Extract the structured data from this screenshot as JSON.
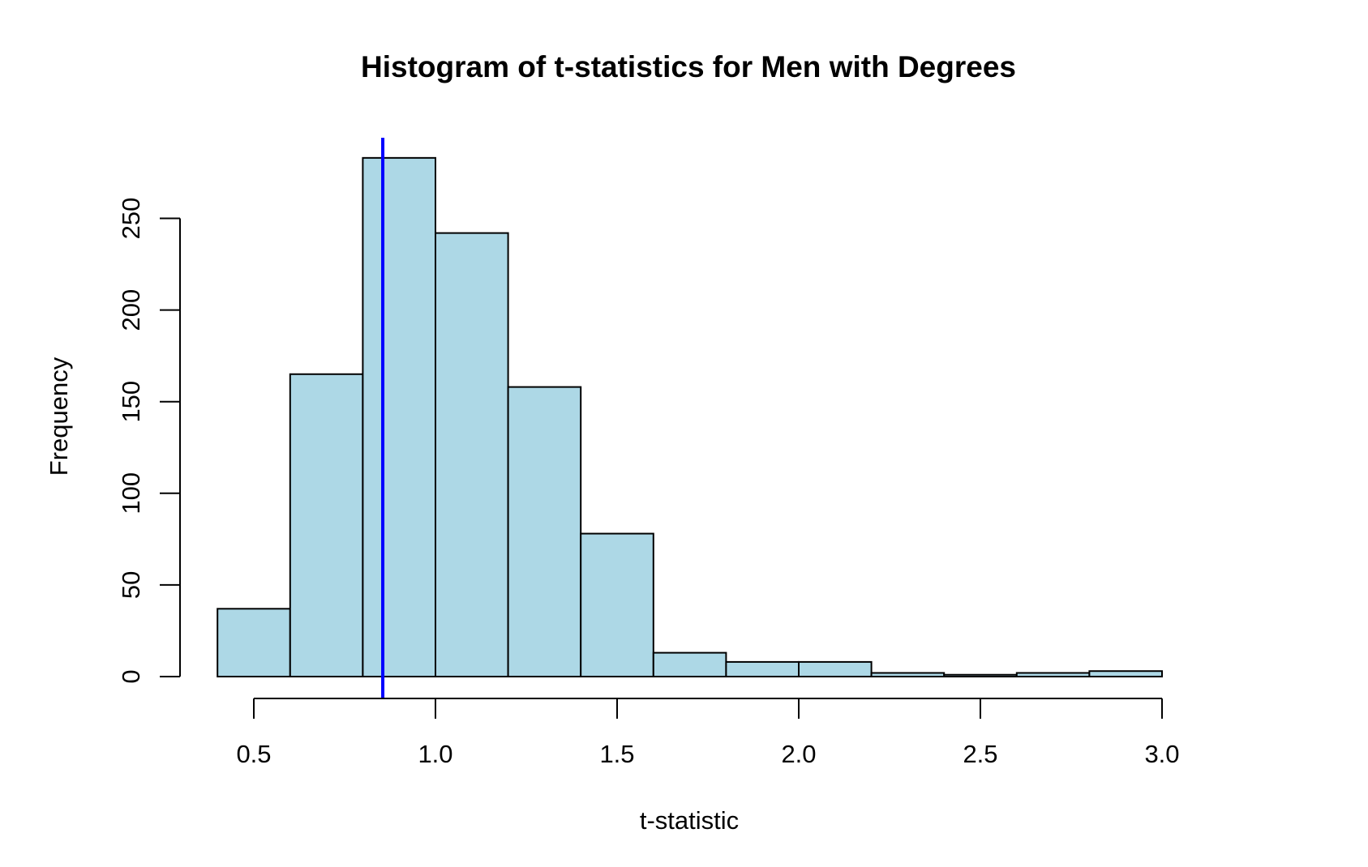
{
  "chart_data": {
    "type": "bar",
    "title": "Histogram of t-statistics for Men with Degrees",
    "xlabel": "t-statistic",
    "ylabel": "Frequency",
    "bins": [
      {
        "x0": 0.4,
        "x1": 0.6,
        "count": 37
      },
      {
        "x0": 0.6,
        "x1": 0.8,
        "count": 165
      },
      {
        "x0": 0.8,
        "x1": 1.0,
        "count": 283
      },
      {
        "x0": 1.0,
        "x1": 1.2,
        "count": 242
      },
      {
        "x0": 1.2,
        "x1": 1.4,
        "count": 158
      },
      {
        "x0": 1.4,
        "x1": 1.6,
        "count": 78
      },
      {
        "x0": 1.6,
        "x1": 1.8,
        "count": 13
      },
      {
        "x0": 1.8,
        "x1": 2.0,
        "count": 8
      },
      {
        "x0": 2.0,
        "x1": 2.2,
        "count": 8
      },
      {
        "x0": 2.2,
        "x1": 2.4,
        "count": 2
      },
      {
        "x0": 2.4,
        "x1": 2.6,
        "count": 1
      },
      {
        "x0": 2.6,
        "x1": 2.8,
        "count": 2
      },
      {
        "x0": 2.8,
        "x1": 3.0,
        "count": 3
      }
    ],
    "xticks": [
      0.5,
      1.0,
      1.5,
      2.0,
      2.5,
      3.0
    ],
    "xtick_labels": [
      "0.5",
      "1.0",
      "1.5",
      "2.0",
      "2.5",
      "3.0"
    ],
    "yticks": [
      0,
      50,
      100,
      150,
      200,
      250
    ],
    "ytick_labels": [
      "0",
      "50",
      "100",
      "150",
      "200",
      "250"
    ],
    "xlim": [
      0.4,
      3.0
    ],
    "ylim": [
      0,
      283
    ],
    "vline": {
      "x": 0.855,
      "color": "#0000ff"
    },
    "bar_color": "#add8e6",
    "grid": false
  }
}
